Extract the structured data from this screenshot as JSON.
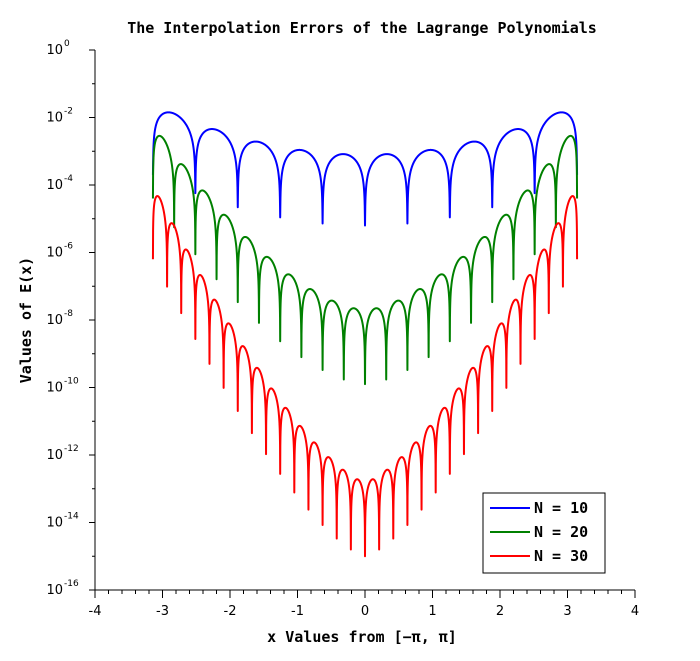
{
  "chart_data": {
    "type": "line",
    "title": "The Interpolation Errors of the Lagrange Polynomials",
    "xlabel": "x Values from [−π, π]",
    "ylabel": "Values of E(x)",
    "xlim": [
      -4,
      4
    ],
    "ylim_exponent": [
      -16,
      0
    ],
    "y_scale": "log",
    "grid": false,
    "legend_position": "bottom-right",
    "x_ticks": [
      "-4",
      "-3",
      "-2",
      "-1",
      "0",
      "1",
      "2",
      "3",
      "4"
    ],
    "y_ticks": [
      {
        "base": "10",
        "exp": "0"
      },
      {
        "base": "10",
        "exp": "-2"
      },
      {
        "base": "10",
        "exp": "-4"
      },
      {
        "base": "10",
        "exp": "-6"
      },
      {
        "base": "10",
        "exp": "-8"
      },
      {
        "base": "10",
        "exp": "-10"
      },
      {
        "base": "10",
        "exp": "-12"
      },
      {
        "base": "10",
        "exp": "-14"
      },
      {
        "base": "10",
        "exp": "-16"
      }
    ],
    "series": [
      {
        "name": "N = 10",
        "color": "#0000ff",
        "N": 10,
        "edge_log10": -1.6,
        "center_log10": -3.1,
        "shape_exponent": 2.0,
        "valley_log10_offset": -2.1
      },
      {
        "name": "N = 20",
        "color": "#008000",
        "N": 20,
        "edge_log10": -2.2,
        "center_log10": -7.7,
        "shape_exponent": 1.6,
        "valley_log10_offset": -2.2
      },
      {
        "name": "N = 30",
        "color": "#ff0000",
        "N": 30,
        "edge_log10": -4.0,
        "center_log10": -12.8,
        "shape_exponent": 1.4,
        "valley_log10_offset": -2.2
      }
    ]
  }
}
